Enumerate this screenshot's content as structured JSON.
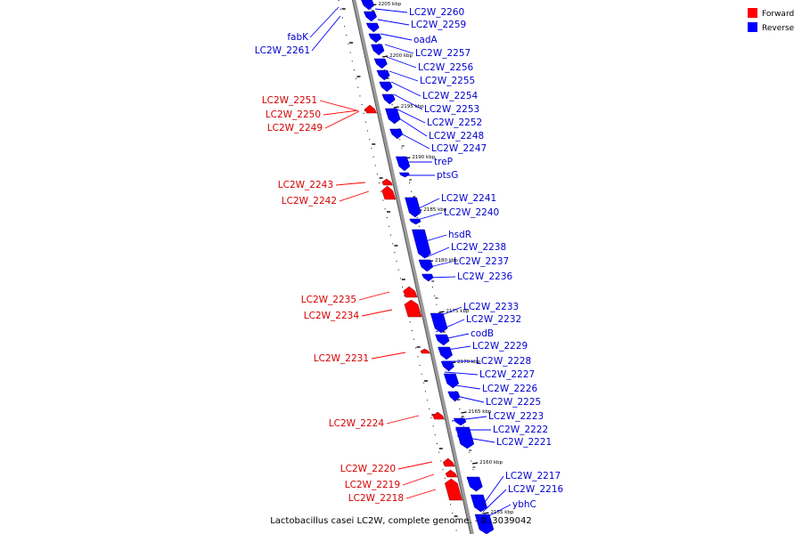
{
  "legend": {
    "forward_label": "Forward",
    "reverse_label": "Reverse",
    "forward_color": "#ff0000",
    "reverse_color": "#0000ff"
  },
  "caption": "Lactobacillus casei LC2W, complete genome. - 0..3039042",
  "ticks": [
    "2205 kbp",
    "2200 kbp",
    "2195 kbp",
    "2190 kbp",
    "2185 kbp",
    "2180 kbp",
    "2175 kbp",
    "2170 kbp",
    "2165 kbp",
    "2160 kbp",
    "2155 kbp"
  ],
  "reverse_genes": [
    "LC2W_2260",
    "LC2W_2259",
    "oadA",
    "LC2W_2257",
    "LC2W_2256",
    "LC2W_2255",
    "LC2W_2254",
    "LC2W_2253",
    "LC2W_2252",
    "LC2W_2248",
    "LC2W_2247",
    "treP",
    "ptsG",
    "LC2W_2241",
    "LC2W_2240",
    "hsdR",
    "LC2W_2238",
    "LC2W_2237",
    "LC2W_2236",
    "LC2W_2233",
    "LC2W_2232",
    "codB",
    "LC2W_2229",
    "LC2W_2228",
    "LC2W_2227",
    "LC2W_2226",
    "LC2W_2225",
    "LC2W_2223",
    "LC2W_2222",
    "LC2W_2221",
    "LC2W_2217",
    "LC2W_2216",
    "ybhC",
    "fabK",
    "LC2W_2261"
  ],
  "forward_genes": [
    "LC2W_2251",
    "LC2W_2250",
    "LC2W_2249",
    "LC2W_2243",
    "LC2W_2242",
    "LC2W_2235",
    "LC2W_2234",
    "LC2W_2231",
    "LC2W_2224",
    "LC2W_2220",
    "LC2W_2219",
    "LC2W_2218"
  ]
}
